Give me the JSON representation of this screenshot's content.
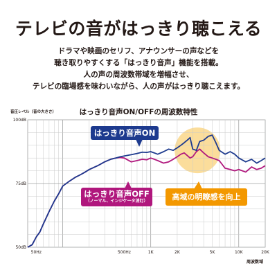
{
  "header": {
    "headline": "テレビの音がはっきり聴こえる",
    "description": [
      "ドラマや映画のセリフ、アナウンサーの声などを",
      "聴き取りやすくする「はっきり音声」機能を搭載。",
      "人の声の周波数帯域を増幅させ、",
      "テレビの臨場感を味わいながら、人の声がはっきり聴こえます。"
    ]
  },
  "chart_data": {
    "type": "line",
    "title": "はっきり音声ON/OFFの周波数特性",
    "ylabel": "音圧レベル（音の大きさ）",
    "xlabel": "周波数域",
    "x_scale": "log",
    "xlim": [
      40,
      20000
    ],
    "ylim": [
      50,
      100
    ],
    "y_ticks": [
      {
        "value": 100,
        "label": "100dB"
      },
      {
        "value": 75,
        "label": "75dB"
      },
      {
        "value": 50,
        "label": "50dB"
      }
    ],
    "x_ticks": [
      {
        "value": 50,
        "label": "50Hz"
      },
      {
        "value": 500,
        "label": "500Hz"
      },
      {
        "value": 1000,
        "label": "1K"
      },
      {
        "value": 2000,
        "label": "2K"
      },
      {
        "value": 5000,
        "label": "5K"
      },
      {
        "value": 10000,
        "label": "10K"
      },
      {
        "value": 20000,
        "label": "20K"
      }
    ],
    "grid": true,
    "series": [
      {
        "name": "はっきり音声ON",
        "color": "#1d3a8e",
        "x": [
          40,
          45,
          50,
          55,
          60,
          70,
          80,
          90,
          100,
          120,
          140,
          160,
          180,
          200,
          250,
          300,
          350,
          400,
          450,
          500,
          600,
          700,
          800,
          900,
          1000,
          1100,
          1200,
          1400,
          1600,
          1800,
          2000,
          2200,
          2400,
          2600,
          2800,
          3000,
          3300,
          3600,
          4000,
          4500,
          5000,
          5500,
          6000,
          7000,
          8000,
          9000,
          10000,
          12000,
          14000,
          16000,
          18000,
          20000
        ],
        "y": [
          50,
          51,
          54,
          56,
          59,
          64,
          68,
          71,
          74,
          76,
          77.5,
          78.5,
          79.5,
          80.5,
          82,
          83.5,
          84.5,
          85,
          85.5,
          85.8,
          86.3,
          86.8,
          87.3,
          87.2,
          87.5,
          87,
          86.5,
          87.5,
          88.5,
          88,
          89,
          90,
          91,
          92,
          93,
          88.5,
          88,
          91.5,
          92,
          93.5,
          94,
          91,
          88,
          86.5,
          87.5,
          86.5,
          85,
          83.5,
          84.5,
          83,
          84,
          85
        ]
      },
      {
        "name": "はっきり音声OFF",
        "color": "#b0177d",
        "x": [
          40,
          45,
          50,
          55,
          60,
          70,
          80,
          90,
          100,
          120,
          140,
          160,
          180,
          200,
          250,
          300,
          350,
          400,
          450,
          500,
          600,
          700,
          800,
          900,
          1000,
          1100,
          1200,
          1400,
          1600,
          1800,
          2000,
          2200,
          2400,
          2600,
          2800,
          3000,
          3300,
          3600,
          4000,
          4500,
          5000,
          5500,
          6000,
          7000,
          8000,
          9000,
          10000,
          12000,
          14000,
          16000,
          18000,
          20000
        ],
        "y": [
          50,
          51,
          54,
          56,
          59,
          64,
          68,
          71,
          74,
          76,
          77.5,
          78.5,
          79.5,
          80.5,
          82,
          83.5,
          84.5,
          85,
          85.2,
          85,
          83.5,
          84,
          84.5,
          84.3,
          85,
          84.5,
          84,
          83,
          83.5,
          84.5,
          85.5,
          86.5,
          87,
          86,
          85,
          85.5,
          87.5,
          88.5,
          87,
          85.5,
          85,
          84.5,
          84,
          81,
          80.5,
          80,
          80.5,
          79.5,
          81.5,
          80.5,
          81,
          82
        ]
      }
    ],
    "annotations": [
      {
        "text": "はっきり音声ON",
        "color": "#1d3a8e"
      },
      {
        "text": "はっきり音声OFF",
        "subtext": "（ノーマル、インジケータ消灯）",
        "color": "#b0177d"
      },
      {
        "text": "高域の明瞭感を向上",
        "color": "#f39800"
      }
    ]
  }
}
